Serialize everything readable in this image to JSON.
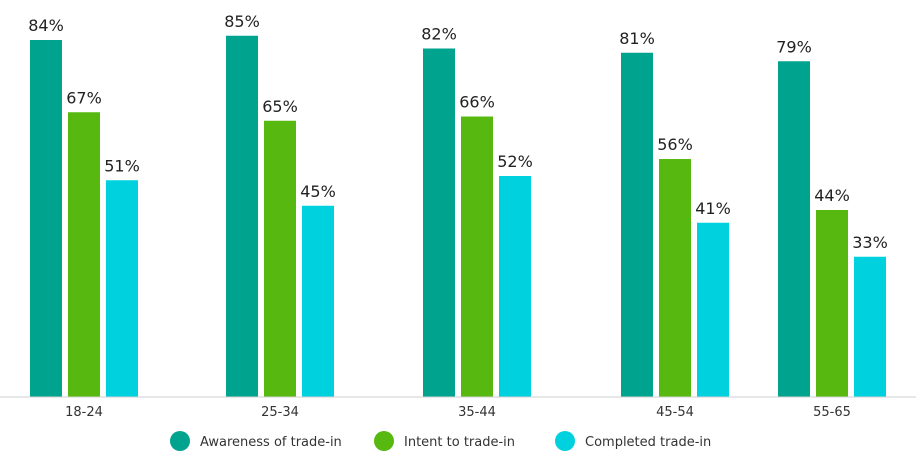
{
  "chart_data": {
    "type": "bar",
    "categories": [
      "18-24",
      "25-34",
      "35-44",
      "45-54",
      "55-65"
    ],
    "series": [
      {
        "name": "Awareness of trade-in",
        "color": "#00A38D",
        "values": [
          84,
          85,
          82,
          81,
          79
        ]
      },
      {
        "name": "Intent to trade-in",
        "color": "#57B80F",
        "values": [
          67,
          65,
          66,
          56,
          44
        ]
      },
      {
        "name": "Completed trade-in",
        "color": "#00D1DE",
        "values": [
          51,
          45,
          52,
          41,
          33
        ]
      }
    ],
    "value_suffix": "%",
    "ylim": [
      0,
      90
    ],
    "grid": false,
    "legend_position": "bottom"
  }
}
